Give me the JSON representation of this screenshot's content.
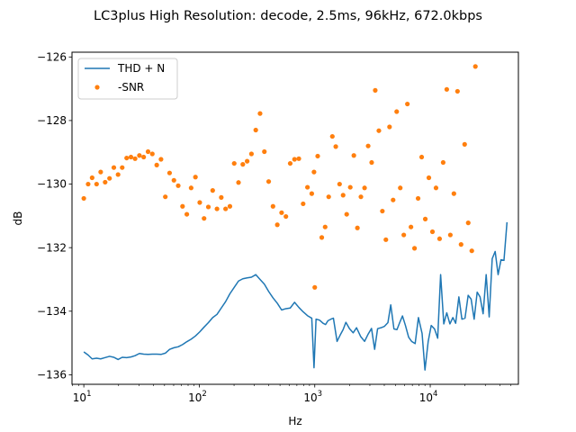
{
  "chart_data": {
    "type": "line+scatter",
    "title": "LC3plus High Resolution: decode, 2.5ms, 96kHz, 672.0kbps",
    "xlabel": "Hz",
    "ylabel": "dB",
    "xscale": "log",
    "xlim": [
      7.9,
      58000
    ],
    "ylim": [
      -136.3,
      -125.85
    ],
    "xticks": [
      {
        "value": 10,
        "base": "10",
        "exp": "1"
      },
      {
        "value": 100,
        "base": "10",
        "exp": "2"
      },
      {
        "value": 1000,
        "base": "10",
        "exp": "3"
      },
      {
        "value": 10000,
        "base": "10",
        "exp": "4"
      }
    ],
    "yticks": [
      {
        "value": -136,
        "label": "−136"
      },
      {
        "value": -134,
        "label": "−134"
      },
      {
        "value": -132,
        "label": "−132"
      },
      {
        "value": -130,
        "label": "−130"
      },
      {
        "value": -128,
        "label": "−128"
      },
      {
        "value": -126,
        "label": "−126"
      }
    ],
    "legend": {
      "position": "top-left"
    },
    "series": [
      {
        "name": "THD + N",
        "kind": "line",
        "color": "#1f77b4",
        "points": [
          [
            10.0,
            -135.28
          ],
          [
            10.9,
            -135.38
          ],
          [
            11.8,
            -135.5
          ],
          [
            12.9,
            -135.48
          ],
          [
            14.0,
            -135.5
          ],
          [
            15.3,
            -135.46
          ],
          [
            16.7,
            -135.42
          ],
          [
            18.2,
            -135.45
          ],
          [
            19.8,
            -135.52
          ],
          [
            21.5,
            -135.45
          ],
          [
            23.5,
            -135.46
          ],
          [
            25.6,
            -135.44
          ],
          [
            27.8,
            -135.4
          ],
          [
            30.3,
            -135.33
          ],
          [
            33.0,
            -135.35
          ],
          [
            36.0,
            -135.36
          ],
          [
            39.2,
            -135.35
          ],
          [
            42.8,
            -135.35
          ],
          [
            46.6,
            -135.36
          ],
          [
            50.8,
            -135.32
          ],
          [
            55.3,
            -135.2
          ],
          [
            60.3,
            -135.15
          ],
          [
            65.7,
            -135.12
          ],
          [
            71.6,
            -135.05
          ],
          [
            78.0,
            -134.96
          ],
          [
            85.0,
            -134.88
          ],
          [
            92.6,
            -134.78
          ],
          [
            100.9,
            -134.65
          ],
          [
            110.0,
            -134.5
          ],
          [
            119.8,
            -134.36
          ],
          [
            130.6,
            -134.2
          ],
          [
            142.3,
            -134.1
          ],
          [
            155.0,
            -133.9
          ],
          [
            168.9,
            -133.7
          ],
          [
            184.1,
            -133.45
          ],
          [
            200.6,
            -133.25
          ],
          [
            218.6,
            -133.05
          ],
          [
            238.2,
            -132.98
          ],
          [
            259.6,
            -132.95
          ],
          [
            282.9,
            -132.93
          ],
          [
            308.3,
            -132.85
          ],
          [
            335.9,
            -133.0
          ],
          [
            366.1,
            -133.15
          ],
          [
            398.9,
            -133.38
          ],
          [
            434.7,
            -133.58
          ],
          [
            473.7,
            -133.75
          ],
          [
            516.2,
            -133.96
          ],
          [
            562.5,
            -133.92
          ],
          [
            613.0,
            -133.9
          ],
          [
            668.0,
            -133.72
          ],
          [
            727.9,
            -133.88
          ],
          [
            793.2,
            -134.02
          ],
          [
            864.4,
            -134.14
          ],
          [
            942.0,
            -134.22
          ],
          [
            985,
            -135.78
          ],
          [
            1026,
            -134.25
          ],
          [
            1100,
            -134.28
          ],
          [
            1180,
            -134.38
          ],
          [
            1240,
            -134.42
          ],
          [
            1300,
            -134.3
          ],
          [
            1380,
            -134.25
          ],
          [
            1450,
            -134.22
          ],
          [
            1560,
            -134.95
          ],
          [
            1660,
            -134.75
          ],
          [
            1760,
            -134.58
          ],
          [
            1860,
            -134.35
          ],
          [
            2000,
            -134.55
          ],
          [
            2150,
            -134.68
          ],
          [
            2300,
            -134.52
          ],
          [
            2500,
            -134.8
          ],
          [
            2700,
            -134.95
          ],
          [
            2900,
            -134.72
          ],
          [
            3100,
            -134.54
          ],
          [
            3300,
            -135.2
          ],
          [
            3500,
            -134.55
          ],
          [
            3750,
            -134.52
          ],
          [
            4000,
            -134.48
          ],
          [
            4300,
            -134.36
          ],
          [
            4550,
            -133.8
          ],
          [
            4850,
            -134.56
          ],
          [
            5150,
            -134.58
          ],
          [
            5450,
            -134.35
          ],
          [
            5750,
            -134.15
          ],
          [
            6100,
            -134.45
          ],
          [
            6500,
            -134.82
          ],
          [
            6900,
            -134.95
          ],
          [
            7400,
            -135.02
          ],
          [
            7900,
            -134.2
          ],
          [
            8500,
            -134.7
          ],
          [
            9000,
            -135.85
          ],
          [
            9600,
            -134.95
          ],
          [
            10200,
            -134.45
          ],
          [
            10900,
            -134.56
          ],
          [
            11600,
            -134.85
          ],
          [
            12300,
            -132.85
          ],
          [
            13100,
            -134.4
          ],
          [
            13900,
            -134.05
          ],
          [
            14800,
            -134.4
          ],
          [
            15700,
            -134.2
          ],
          [
            16600,
            -134.38
          ],
          [
            17700,
            -133.55
          ],
          [
            18800,
            -134.25
          ],
          [
            20000,
            -134.22
          ],
          [
            21300,
            -133.5
          ],
          [
            22600,
            -133.62
          ],
          [
            24000,
            -134.25
          ],
          [
            25500,
            -133.4
          ],
          [
            27000,
            -133.55
          ],
          [
            28700,
            -134.08
          ],
          [
            30500,
            -132.85
          ],
          [
            32400,
            -134.18
          ],
          [
            34400,
            -132.35
          ],
          [
            36500,
            -132.12
          ],
          [
            38700,
            -132.85
          ],
          [
            41000,
            -132.38
          ],
          [
            43500,
            -132.4
          ],
          [
            46200,
            -131.2
          ]
        ]
      },
      {
        "name": "-SNR",
        "kind": "scatter",
        "color": "#ff7f0e",
        "points": [
          [
            10.0,
            -130.45
          ],
          [
            10.9,
            -130.0
          ],
          [
            11.8,
            -129.8
          ],
          [
            12.9,
            -130.0
          ],
          [
            14.0,
            -129.62
          ],
          [
            15.3,
            -129.94
          ],
          [
            16.7,
            -129.82
          ],
          [
            18.2,
            -129.48
          ],
          [
            19.8,
            -129.7
          ],
          [
            21.5,
            -129.48
          ],
          [
            23.5,
            -129.18
          ],
          [
            25.6,
            -129.15
          ],
          [
            27.8,
            -129.2
          ],
          [
            30.3,
            -129.1
          ],
          [
            33.0,
            -129.15
          ],
          [
            36.0,
            -128.98
          ],
          [
            39.2,
            -129.05
          ],
          [
            42.8,
            -129.4
          ],
          [
            46.6,
            -129.22
          ],
          [
            50.8,
            -130.4
          ],
          [
            55.3,
            -129.65
          ],
          [
            60.3,
            -129.88
          ],
          [
            65.7,
            -130.05
          ],
          [
            71.6,
            -130.7
          ],
          [
            78.0,
            -130.95
          ],
          [
            85.0,
            -130.12
          ],
          [
            92.6,
            -129.78
          ],
          [
            100.9,
            -130.58
          ],
          [
            110.0,
            -131.08
          ],
          [
            119.8,
            -130.72
          ],
          [
            130.6,
            -130.2
          ],
          [
            142.3,
            -130.78
          ],
          [
            155.0,
            -130.42
          ],
          [
            168.9,
            -130.78
          ],
          [
            184.1,
            -130.7
          ],
          [
            200.6,
            -129.35
          ],
          [
            218.6,
            -129.95
          ],
          [
            238.2,
            -129.38
          ],
          [
            259.6,
            -129.28
          ],
          [
            282.9,
            -129.05
          ],
          [
            308.3,
            -128.3
          ],
          [
            335.9,
            -127.78
          ],
          [
            366.1,
            -128.98
          ],
          [
            398.9,
            -129.92
          ],
          [
            434.7,
            -130.7
          ],
          [
            473.7,
            -131.28
          ],
          [
            516.2,
            -130.9
          ],
          [
            562.5,
            -131.02
          ],
          [
            613.0,
            -129.35
          ],
          [
            668.0,
            -129.22
          ],
          [
            727.9,
            -129.2
          ],
          [
            793.2,
            -130.62
          ],
          [
            864.4,
            -130.1
          ],
          [
            942.0,
            -130.3
          ],
          [
            985,
            -129.62
          ],
          [
            1000,
            -133.25
          ],
          [
            1060,
            -129.12
          ],
          [
            1150,
            -131.68
          ],
          [
            1230,
            -131.35
          ],
          [
            1320,
            -130.4
          ],
          [
            1420,
            -128.5
          ],
          [
            1520,
            -128.82
          ],
          [
            1640,
            -130.0
          ],
          [
            1760,
            -130.35
          ],
          [
            1890,
            -130.95
          ],
          [
            2030,
            -130.1
          ],
          [
            2180,
            -129.1
          ],
          [
            2340,
            -131.38
          ],
          [
            2510,
            -130.4
          ],
          [
            2700,
            -130.12
          ],
          [
            2900,
            -128.8
          ],
          [
            3110,
            -129.32
          ],
          [
            3340,
            -127.05
          ],
          [
            3590,
            -128.32
          ],
          [
            3850,
            -130.85
          ],
          [
            4130,
            -131.75
          ],
          [
            4440,
            -128.2
          ],
          [
            4770,
            -130.5
          ],
          [
            5120,
            -127.72
          ],
          [
            5500,
            -130.12
          ],
          [
            5900,
            -131.6
          ],
          [
            6340,
            -127.48
          ],
          [
            6810,
            -131.35
          ],
          [
            7310,
            -132.02
          ],
          [
            7850,
            -130.45
          ],
          [
            8430,
            -129.15
          ],
          [
            9060,
            -131.1
          ],
          [
            9730,
            -129.8
          ],
          [
            10450,
            -131.5
          ],
          [
            11220,
            -130.12
          ],
          [
            12050,
            -131.72
          ],
          [
            12940,
            -129.32
          ],
          [
            13900,
            -127.02
          ],
          [
            14930,
            -131.6
          ],
          [
            16030,
            -130.3
          ],
          [
            17220,
            -127.08
          ],
          [
            18490,
            -131.9
          ],
          [
            19860,
            -128.75
          ],
          [
            21330,
            -131.22
          ],
          [
            22900,
            -132.1
          ],
          [
            24600,
            -126.3
          ]
        ]
      }
    ]
  }
}
